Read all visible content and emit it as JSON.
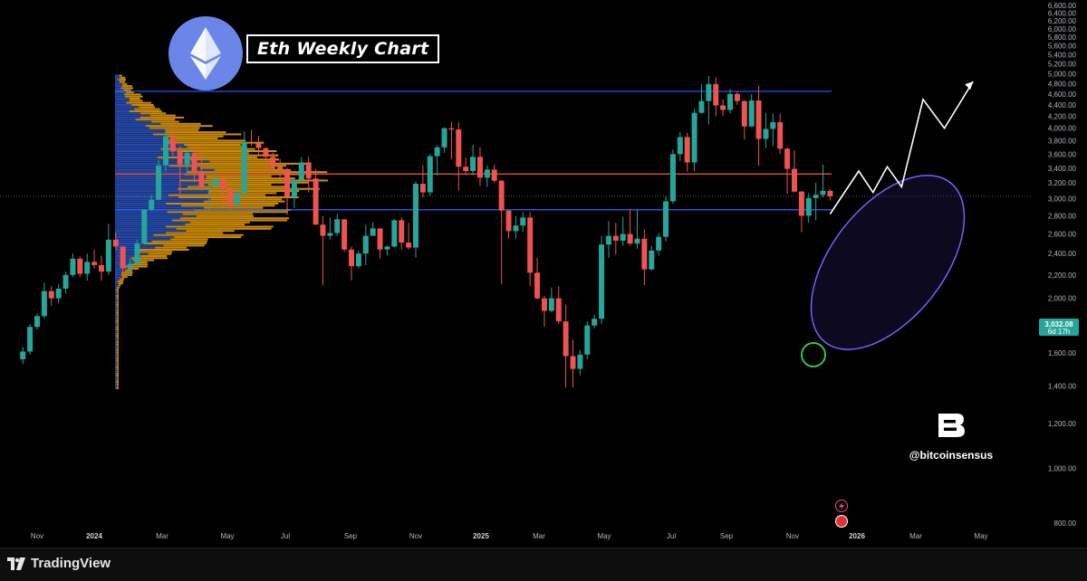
{
  "chart_title": "Eth Weekly Chart",
  "brand": {
    "handle": "@bitcoinsensus",
    "logo_letter": "B"
  },
  "footer": {
    "platform_name": "TradingView"
  },
  "price_badge": {
    "price": "3,032.08",
    "countdown": "6d 17h"
  },
  "colors": {
    "up": "#26a69a",
    "down": "#ef5350",
    "level_line": "#2962ff",
    "poc_line": "#ff5a36",
    "volume_upper": "#f0a30a",
    "volume_lower": "#2a52be",
    "projection_ellipse": "#7b5cff",
    "highlight_circle": "#31c45a",
    "eth_badge": "#6b86e8",
    "badge_bg": "#26a69a"
  },
  "chart_data": {
    "type": "candlestick",
    "title": "Eth Weekly Chart",
    "timeframe": "weekly",
    "y_axis": {
      "ticks": [
        "6,600.00",
        "6,400.00",
        "6,200.00",
        "6,000.00",
        "5,800.00",
        "5,600.00",
        "5,400.00",
        "5,200.00",
        "5,000.00",
        "4,800.00",
        "4,600.00",
        "4,400.00",
        "4,200.00",
        "4,000.00",
        "3,800.00",
        "3,600.00",
        "3,400.00",
        "3,200.00",
        "3,000.00",
        "2,800.00",
        "2,600.00",
        "2,400.00",
        "2,200.00",
        "2,000.00",
        "1,800.00",
        "1,600.00",
        "1,400.00",
        "1,200.00",
        "1,000.00",
        "800.00"
      ],
      "ylim": [
        700,
        6700
      ],
      "scale": "log"
    },
    "x_axis": {
      "ticks": [
        "Nov",
        "2024",
        "Mar",
        "May",
        "Jul",
        "Sep",
        "Nov",
        "2025",
        "Mar",
        "May",
        "Jul",
        "Sep",
        "Nov",
        "2026",
        "Mar",
        "May"
      ]
    },
    "horizontal_levels": [
      {
        "name": "resistance",
        "price": 4650
      },
      {
        "name": "poc",
        "price": 3320
      },
      {
        "name": "support",
        "price": 2870
      },
      {
        "name": "current",
        "price": 3032.08
      }
    ],
    "candles": [
      {
        "date": "2023-10-16",
        "o": 1560,
        "h": 1640,
        "l": 1530,
        "c": 1610
      },
      {
        "date": "2023-10-23",
        "o": 1610,
        "h": 1800,
        "l": 1590,
        "c": 1780
      },
      {
        "date": "2023-10-30",
        "o": 1780,
        "h": 1880,
        "l": 1760,
        "c": 1860
      },
      {
        "date": "2023-11-06",
        "o": 1860,
        "h": 2130,
        "l": 1840,
        "c": 2060
      },
      {
        "date": "2023-11-13",
        "o": 2060,
        "h": 2100,
        "l": 1940,
        "c": 2000
      },
      {
        "date": "2023-11-20",
        "o": 2000,
        "h": 2120,
        "l": 1960,
        "c": 2080
      },
      {
        "date": "2023-11-27",
        "o": 2080,
        "h": 2230,
        "l": 2040,
        "c": 2200
      },
      {
        "date": "2023-12-04",
        "o": 2200,
        "h": 2400,
        "l": 2180,
        "c": 2350
      },
      {
        "date": "2023-12-11",
        "o": 2350,
        "h": 2370,
        "l": 2180,
        "c": 2210
      },
      {
        "date": "2023-12-18",
        "o": 2210,
        "h": 2400,
        "l": 2150,
        "c": 2320
      },
      {
        "date": "2023-12-25",
        "o": 2320,
        "h": 2440,
        "l": 2260,
        "c": 2290
      },
      {
        "date": "2024-01-01",
        "o": 2290,
        "h": 2380,
        "l": 2150,
        "c": 2230
      },
      {
        "date": "2024-01-08",
        "o": 2230,
        "h": 2710,
        "l": 2200,
        "c": 2540
      },
      {
        "date": "2024-01-15",
        "o": 2540,
        "h": 2620,
        "l": 2440,
        "c": 2470
      },
      {
        "date": "2024-01-22",
        "o": 2470,
        "h": 2470,
        "l": 2160,
        "c": 2260
      },
      {
        "date": "2024-01-29",
        "o": 2260,
        "h": 2350,
        "l": 2200,
        "c": 2300
      },
      {
        "date": "2024-02-05",
        "o": 2300,
        "h": 2540,
        "l": 2290,
        "c": 2500
      },
      {
        "date": "2024-02-12",
        "o": 2500,
        "h": 2880,
        "l": 2490,
        "c": 2870
      },
      {
        "date": "2024-02-19",
        "o": 2870,
        "h": 3050,
        "l": 2850,
        "c": 2990
      },
      {
        "date": "2024-02-26",
        "o": 2990,
        "h": 3520,
        "l": 2980,
        "c": 3440
      },
      {
        "date": "2024-03-04",
        "o": 3440,
        "h": 4000,
        "l": 3360,
        "c": 3870
      },
      {
        "date": "2024-03-11",
        "o": 3870,
        "h": 4090,
        "l": 3570,
        "c": 3640
      },
      {
        "date": "2024-03-18",
        "o": 3640,
        "h": 3720,
        "l": 3060,
        "c": 3450
      },
      {
        "date": "2024-03-25",
        "o": 3450,
        "h": 3680,
        "l": 3300,
        "c": 3620
      },
      {
        "date": "2024-04-01",
        "o": 3620,
        "h": 3650,
        "l": 3210,
        "c": 3360
      },
      {
        "date": "2024-04-08",
        "o": 3360,
        "h": 3720,
        "l": 3100,
        "c": 3150
      },
      {
        "date": "2024-04-15",
        "o": 3150,
        "h": 3280,
        "l": 2860,
        "c": 3160
      },
      {
        "date": "2024-04-22",
        "o": 3160,
        "h": 3360,
        "l": 3100,
        "c": 3250
      },
      {
        "date": "2024-04-29",
        "o": 3250,
        "h": 3320,
        "l": 2900,
        "c": 3120
      },
      {
        "date": "2024-05-06",
        "o": 3120,
        "h": 3190,
        "l": 2860,
        "c": 2930
      },
      {
        "date": "2024-05-13",
        "o": 2930,
        "h": 3120,
        "l": 2900,
        "c": 3070
      },
      {
        "date": "2024-05-20",
        "o": 3070,
        "h": 3950,
        "l": 3040,
        "c": 3780
      },
      {
        "date": "2024-05-27",
        "o": 3780,
        "h": 3970,
        "l": 3720,
        "c": 3760
      },
      {
        "date": "2024-06-03",
        "o": 3760,
        "h": 3880,
        "l": 3600,
        "c": 3690
      },
      {
        "date": "2024-06-10",
        "o": 3690,
        "h": 3700,
        "l": 3400,
        "c": 3560
      },
      {
        "date": "2024-06-17",
        "o": 3560,
        "h": 3620,
        "l": 3360,
        "c": 3420
      },
      {
        "date": "2024-06-24",
        "o": 3420,
        "h": 3530,
        "l": 3240,
        "c": 3380
      },
      {
        "date": "2024-07-01",
        "o": 3380,
        "h": 3400,
        "l": 2810,
        "c": 3020
      },
      {
        "date": "2024-07-08",
        "o": 3020,
        "h": 3260,
        "l": 2890,
        "c": 3240
      },
      {
        "date": "2024-07-15",
        "o": 3240,
        "h": 3560,
        "l": 3230,
        "c": 3480
      },
      {
        "date": "2024-07-22",
        "o": 3480,
        "h": 3560,
        "l": 3080,
        "c": 3260
      },
      {
        "date": "2024-07-29",
        "o": 3260,
        "h": 3390,
        "l": 2700,
        "c": 2700
      },
      {
        "date": "2024-08-05",
        "o": 2700,
        "h": 2800,
        "l": 2110,
        "c": 2580
      },
      {
        "date": "2024-08-12",
        "o": 2580,
        "h": 2780,
        "l": 2540,
        "c": 2610
      },
      {
        "date": "2024-08-19",
        "o": 2610,
        "h": 2820,
        "l": 2580,
        "c": 2760
      },
      {
        "date": "2024-08-26",
        "o": 2760,
        "h": 2760,
        "l": 2420,
        "c": 2440
      },
      {
        "date": "2024-09-02",
        "o": 2440,
        "h": 2470,
        "l": 2150,
        "c": 2280
      },
      {
        "date": "2024-09-09",
        "o": 2280,
        "h": 2430,
        "l": 2260,
        "c": 2400
      },
      {
        "date": "2024-09-16",
        "o": 2400,
        "h": 2700,
        "l": 2290,
        "c": 2580
      },
      {
        "date": "2024-09-23",
        "o": 2580,
        "h": 2730,
        "l": 2600,
        "c": 2660
      },
      {
        "date": "2024-09-30",
        "o": 2660,
        "h": 2650,
        "l": 2350,
        "c": 2440
      },
      {
        "date": "2024-10-07",
        "o": 2440,
        "h": 2480,
        "l": 2380,
        "c": 2470
      },
      {
        "date": "2024-10-14",
        "o": 2470,
        "h": 2760,
        "l": 2460,
        "c": 2750
      },
      {
        "date": "2024-10-21",
        "o": 2750,
        "h": 2780,
        "l": 2440,
        "c": 2510
      },
      {
        "date": "2024-10-28",
        "o": 2510,
        "h": 2720,
        "l": 2440,
        "c": 2460
      },
      {
        "date": "2024-11-04",
        "o": 2460,
        "h": 3220,
        "l": 2360,
        "c": 3190
      },
      {
        "date": "2024-11-11",
        "o": 3190,
        "h": 3440,
        "l": 3020,
        "c": 3080
      },
      {
        "date": "2024-11-18",
        "o": 3080,
        "h": 3600,
        "l": 3040,
        "c": 3570
      },
      {
        "date": "2024-11-25",
        "o": 3570,
        "h": 3740,
        "l": 3300,
        "c": 3700
      },
      {
        "date": "2024-12-02",
        "o": 3700,
        "h": 4020,
        "l": 3620,
        "c": 4000
      },
      {
        "date": "2024-12-09",
        "o": 4000,
        "h": 4110,
        "l": 3530,
        "c": 3980
      },
      {
        "date": "2024-12-16",
        "o": 3980,
        "h": 4100,
        "l": 3100,
        "c": 3420
      },
      {
        "date": "2024-12-23",
        "o": 3420,
        "h": 3550,
        "l": 3300,
        "c": 3360
      },
      {
        "date": "2024-12-30",
        "o": 3360,
        "h": 3740,
        "l": 3300,
        "c": 3560
      },
      {
        "date": "2025-01-06",
        "o": 3560,
        "h": 3700,
        "l": 3160,
        "c": 3270
      },
      {
        "date": "2025-01-13",
        "o": 3270,
        "h": 3440,
        "l": 3150,
        "c": 3380
      },
      {
        "date": "2025-01-20",
        "o": 3380,
        "h": 3450,
        "l": 3200,
        "c": 3230
      },
      {
        "date": "2025-01-27",
        "o": 3230,
        "h": 3240,
        "l": 2120,
        "c": 2860
      },
      {
        "date": "2025-02-03",
        "o": 2860,
        "h": 2860,
        "l": 2550,
        "c": 2630
      },
      {
        "date": "2025-02-10",
        "o": 2630,
        "h": 2800,
        "l": 2550,
        "c": 2690
      },
      {
        "date": "2025-02-17",
        "o": 2690,
        "h": 2840,
        "l": 2620,
        "c": 2780
      },
      {
        "date": "2025-02-24",
        "o": 2780,
        "h": 2840,
        "l": 2100,
        "c": 2220
      },
      {
        "date": "2025-03-03",
        "o": 2220,
        "h": 2360,
        "l": 1990,
        "c": 2000
      },
      {
        "date": "2025-03-10",
        "o": 2000,
        "h": 2020,
        "l": 1780,
        "c": 1900
      },
      {
        "date": "2025-03-17",
        "o": 1900,
        "h": 2090,
        "l": 1890,
        "c": 2000
      },
      {
        "date": "2025-03-24",
        "o": 2000,
        "h": 2100,
        "l": 1800,
        "c": 1820
      },
      {
        "date": "2025-03-31",
        "o": 1820,
        "h": 1950,
        "l": 1390,
        "c": 1580
      },
      {
        "date": "2025-04-07",
        "o": 1580,
        "h": 1690,
        "l": 1390,
        "c": 1500
      },
      {
        "date": "2025-04-14",
        "o": 1500,
        "h": 1620,
        "l": 1460,
        "c": 1590
      },
      {
        "date": "2025-04-21",
        "o": 1590,
        "h": 1820,
        "l": 1560,
        "c": 1790
      },
      {
        "date": "2025-04-28",
        "o": 1790,
        "h": 1870,
        "l": 1770,
        "c": 1840
      },
      {
        "date": "2025-05-05",
        "o": 1840,
        "h": 2580,
        "l": 1800,
        "c": 2490
      },
      {
        "date": "2025-05-12",
        "o": 2490,
        "h": 2740,
        "l": 2360,
        "c": 2580
      },
      {
        "date": "2025-05-19",
        "o": 2580,
        "h": 2720,
        "l": 2390,
        "c": 2530
      },
      {
        "date": "2025-05-26",
        "o": 2530,
        "h": 2790,
        "l": 2480,
        "c": 2600
      },
      {
        "date": "2025-06-02",
        "o": 2600,
        "h": 2880,
        "l": 2480,
        "c": 2500
      },
      {
        "date": "2025-06-09",
        "o": 2500,
        "h": 2870,
        "l": 2450,
        "c": 2550
      },
      {
        "date": "2025-06-16",
        "o": 2550,
        "h": 2650,
        "l": 2110,
        "c": 2250
      },
      {
        "date": "2025-06-23",
        "o": 2250,
        "h": 2480,
        "l": 2240,
        "c": 2430
      },
      {
        "date": "2025-06-30",
        "o": 2430,
        "h": 2610,
        "l": 2380,
        "c": 2570
      },
      {
        "date": "2025-07-07",
        "o": 2570,
        "h": 3030,
        "l": 2520,
        "c": 2970
      },
      {
        "date": "2025-07-14",
        "o": 2970,
        "h": 3670,
        "l": 2940,
        "c": 3600
      },
      {
        "date": "2025-07-21",
        "o": 3600,
        "h": 3940,
        "l": 3500,
        "c": 3860
      },
      {
        "date": "2025-07-28",
        "o": 3860,
        "h": 3930,
        "l": 3350,
        "c": 3480
      },
      {
        "date": "2025-08-04",
        "o": 3480,
        "h": 4330,
        "l": 3360,
        "c": 4260
      },
      {
        "date": "2025-08-11",
        "o": 4260,
        "h": 4790,
        "l": 4250,
        "c": 4470
      },
      {
        "date": "2025-08-18",
        "o": 4470,
        "h": 4950,
        "l": 4060,
        "c": 4790
      },
      {
        "date": "2025-08-25",
        "o": 4790,
        "h": 4920,
        "l": 4200,
        "c": 4390
      },
      {
        "date": "2025-09-01",
        "o": 4390,
        "h": 4500,
        "l": 4200,
        "c": 4310
      },
      {
        "date": "2025-09-08",
        "o": 4310,
        "h": 4690,
        "l": 4250,
        "c": 4600
      },
      {
        "date": "2025-09-15",
        "o": 4600,
        "h": 4640,
        "l": 4400,
        "c": 4470
      },
      {
        "date": "2025-09-22",
        "o": 4470,
        "h": 4480,
        "l": 3820,
        "c": 4030
      },
      {
        "date": "2025-09-29",
        "o": 4030,
        "h": 4600,
        "l": 4020,
        "c": 4480
      },
      {
        "date": "2025-10-06",
        "o": 4480,
        "h": 4760,
        "l": 3430,
        "c": 3830
      },
      {
        "date": "2025-10-13",
        "o": 3830,
        "h": 4260,
        "l": 3690,
        "c": 3990
      },
      {
        "date": "2025-10-20",
        "o": 3990,
        "h": 4250,
        "l": 3720,
        "c": 4100
      },
      {
        "date": "2025-10-27",
        "o": 4100,
        "h": 4250,
        "l": 3600,
        "c": 3680
      },
      {
        "date": "2025-11-03",
        "o": 3680,
        "h": 3700,
        "l": 3060,
        "c": 3390
      },
      {
        "date": "2025-11-10",
        "o": 3390,
        "h": 3660,
        "l": 3080,
        "c": 3090
      },
      {
        "date": "2025-11-17",
        "o": 3090,
        "h": 3100,
        "l": 2620,
        "c": 2800
      },
      {
        "date": "2025-11-24",
        "o": 2800,
        "h": 3070,
        "l": 2720,
        "c": 3010
      },
      {
        "date": "2025-12-01",
        "o": 3010,
        "h": 3200,
        "l": 2750,
        "c": 3050
      },
      {
        "date": "2025-12-08",
        "o": 3050,
        "h": 3450,
        "l": 3020,
        "c": 3100
      },
      {
        "date": "2025-12-15",
        "o": 3100,
        "h": 3120,
        "l": 2980,
        "c": 3032.08
      }
    ],
    "projection_path": [
      {
        "date": "2025-12-15",
        "price": 2820
      },
      {
        "date": "2026-01-12",
        "price": 3360
      },
      {
        "date": "2026-01-26",
        "price": 3080
      },
      {
        "date": "2026-02-09",
        "price": 3420
      },
      {
        "date": "2026-02-23",
        "price": 3150
      },
      {
        "date": "2026-03-16",
        "price": 4500
      },
      {
        "date": "2026-04-06",
        "price": 4000
      },
      {
        "date": "2026-05-04",
        "price": 4840
      }
    ],
    "volume_profile": {
      "price_range": [
        1380,
        4980
      ],
      "peak_price": 3320,
      "note": "horizontal volume-by-price histogram on the left"
    }
  }
}
